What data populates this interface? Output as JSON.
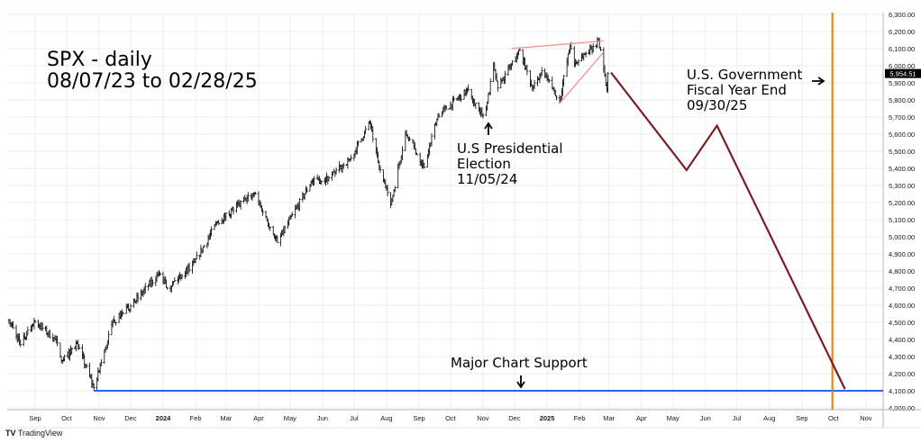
{
  "chart_data": {
    "type": "ohlc",
    "title": "SPX - daily",
    "subtitle": "08/07/23 to 02/28/25",
    "ylim": [
      4000,
      6300
    ],
    "y_ticks": [
      "6,300.00",
      "6,200.00",
      "6,100.00",
      "6,000.00",
      "5,900.00",
      "5,800.00",
      "5,700.00",
      "5,600.00",
      "5,500.00",
      "5,400.00",
      "5,300.00",
      "5,200.00",
      "5,100.00",
      "5,000.00",
      "4,900.00",
      "4,800.00",
      "4,700.00",
      "4,600.00",
      "4,500.00",
      "4,400.00",
      "4,300.00",
      "4,200.00",
      "4,100.00",
      "4,000.00"
    ],
    "x_ticks": [
      {
        "label": "Sep",
        "date": "2023-09-01"
      },
      {
        "label": "Oct",
        "date": "2023-10-01"
      },
      {
        "label": "Nov",
        "date": "2023-11-01"
      },
      {
        "label": "Dec",
        "date": "2023-12-01"
      },
      {
        "label": "2024",
        "date": "2024-01-01"
      },
      {
        "label": "Feb",
        "date": "2024-02-01"
      },
      {
        "label": "Mar",
        "date": "2024-03-01"
      },
      {
        "label": "Apr",
        "date": "2024-04-01"
      },
      {
        "label": "May",
        "date": "2024-05-01"
      },
      {
        "label": "Jun",
        "date": "2024-06-01"
      },
      {
        "label": "Jul",
        "date": "2024-07-01"
      },
      {
        "label": "Aug",
        "date": "2024-08-01"
      },
      {
        "label": "Sep",
        "date": "2024-09-01"
      },
      {
        "label": "Oct",
        "date": "2024-10-01"
      },
      {
        "label": "Nov",
        "date": "2024-11-01"
      },
      {
        "label": "Dec",
        "date": "2024-12-01"
      },
      {
        "label": "2025",
        "date": "2025-01-01"
      },
      {
        "label": "Feb",
        "date": "2025-02-01"
      },
      {
        "label": "Mar",
        "date": "2025-03-01"
      },
      {
        "label": "Apr",
        "date": "2025-04-01"
      },
      {
        "label": "May",
        "date": "2025-05-01"
      },
      {
        "label": "Jun",
        "date": "2025-06-01"
      },
      {
        "label": "Jul",
        "date": "2025-07-01"
      },
      {
        "label": "Aug",
        "date": "2025-08-01"
      },
      {
        "label": "Sep",
        "date": "2025-09-01"
      },
      {
        "label": "Oct",
        "date": "2025-10-01"
      },
      {
        "label": "Nov",
        "date": "2025-11-01"
      }
    ],
    "price_waypoints": [
      [
        "2023-08-07",
        4515
      ],
      [
        "2023-08-18",
        4370
      ],
      [
        "2023-08-31",
        4510
      ],
      [
        "2023-09-20",
        4400
      ],
      [
        "2023-09-27",
        4275
      ],
      [
        "2023-10-11",
        4375
      ],
      [
        "2023-10-27",
        4117
      ],
      [
        "2023-11-14",
        4500
      ],
      [
        "2023-12-01",
        4595
      ],
      [
        "2023-12-28",
        4785
      ],
      [
        "2024-01-05",
        4700
      ],
      [
        "2024-01-31",
        4850
      ],
      [
        "2024-02-22",
        5090
      ],
      [
        "2024-03-28",
        5255
      ],
      [
        "2024-04-19",
        4967
      ],
      [
        "2024-05-21",
        5320
      ],
      [
        "2024-06-07",
        5345
      ],
      [
        "2024-06-28",
        5460
      ],
      [
        "2024-07-16",
        5667
      ],
      [
        "2024-07-25",
        5400
      ],
      [
        "2024-08-05",
        5186
      ],
      [
        "2024-08-19",
        5608
      ],
      [
        "2024-09-06",
        5408
      ],
      [
        "2024-09-19",
        5710
      ],
      [
        "2024-10-18",
        5860
      ],
      [
        "2024-10-31",
        5705
      ],
      [
        "2024-11-05",
        5782
      ],
      [
        "2024-11-11",
        6001
      ],
      [
        "2024-11-15",
        5870
      ],
      [
        "2024-12-06",
        6090
      ],
      [
        "2024-12-18",
        5872
      ],
      [
        "2024-12-27",
        5970
      ],
      [
        "2025-01-13",
        5800
      ],
      [
        "2025-01-23",
        6118
      ],
      [
        "2025-01-27",
        6010
      ],
      [
        "2025-02-19",
        6144
      ],
      [
        "2025-02-27",
        5861
      ],
      [
        "2025-02-28",
        5954
      ]
    ],
    "last_price": "5,954.51",
    "projection": [
      [
        "2025-03-03",
        5960
      ],
      [
        "2025-05-14",
        5390
      ],
      [
        "2025-06-12",
        5650
      ],
      [
        "2025-10-12",
        4110
      ]
    ],
    "wedge_upper": [
      [
        "2024-11-28",
        6100
      ],
      [
        "2025-02-24",
        6145
      ]
    ],
    "wedge_lower": [
      [
        "2025-01-13",
        5780
      ],
      [
        "2025-02-24",
        6080
      ]
    ],
    "support_level": 4100,
    "support_start": "2023-10-27",
    "fiscal_year_end_date": "2025-09-30",
    "colors": {
      "bars": "#000000",
      "projection": "#7b1e24",
      "wedge": "#f28b8b",
      "support": "#2962ff",
      "fiscal": "#f57c00",
      "grid": "#eeeeee"
    }
  },
  "annotations": {
    "title_line1": "SPX - daily",
    "title_line2": "08/07/23 to 02/28/25",
    "election": "U.S Presidential\nElection\n11/05/24",
    "fiscal": "U.S. Government\nFiscal Year End\n09/30/25",
    "support": "Major Chart Support"
  },
  "footer": {
    "brand": "TradingView"
  }
}
